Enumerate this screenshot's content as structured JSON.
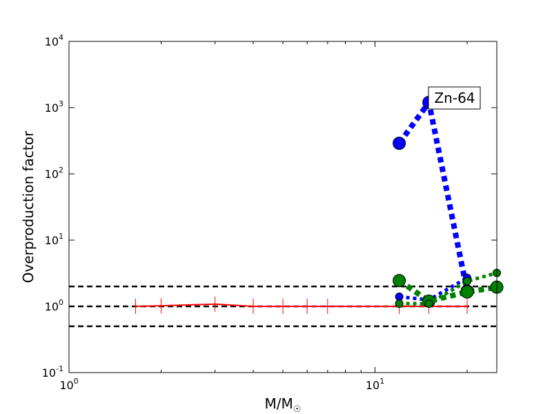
{
  "chart_data": {
    "type": "scatter",
    "title": "",
    "xlabel": "M/M",
    "xlabel_subscript": "☉",
    "ylabel": "Overproduction factor",
    "xscale": "log",
    "yscale": "log",
    "xlim": [
      1,
      25
    ],
    "ylim": [
      0.1,
      10000
    ],
    "grid": false,
    "annotation": "Zn-64",
    "x_ticks": [
      {
        "value": 1,
        "base": "10",
        "exp": "0"
      },
      {
        "value": 10,
        "base": "10",
        "exp": "1"
      }
    ],
    "y_ticks": [
      {
        "value": 0.1,
        "base": "10",
        "exp": "-1"
      },
      {
        "value": 1,
        "base": "10",
        "exp": "0"
      },
      {
        "value": 10,
        "base": "10",
        "exp": "1"
      },
      {
        "value": 100,
        "base": "10",
        "exp": "2"
      },
      {
        "value": 1000,
        "base": "10",
        "exp": "3"
      },
      {
        "value": 10000,
        "base": "10",
        "exp": "4"
      }
    ],
    "reference_lines": [
      {
        "y": 2,
        "color": "#000000",
        "style": "dashed"
      },
      {
        "y": 1,
        "color": "#000000",
        "style": "dashed"
      },
      {
        "y": 0.5,
        "color": "#000000",
        "style": "dashed"
      }
    ],
    "series": [
      {
        "color": "#ff0000",
        "style": "solid",
        "marker": "tick",
        "x": [
          1.65,
          2,
          3,
          4,
          5,
          6,
          7,
          12,
          15,
          20
        ],
        "y": [
          1.0,
          1.02,
          1.08,
          1.0,
          1.0,
          1.0,
          1.0,
          1.0,
          1.0,
          1.0
        ]
      },
      {
        "color": "#0000ff",
        "style": "dotted-thick",
        "marker": "circle-large",
        "x": [
          12,
          15,
          20
        ],
        "y": [
          290,
          1200,
          1.7
        ]
      },
      {
        "color": "#0000ff",
        "style": "dotted",
        "marker": "circle-small",
        "x": [
          12,
          15,
          20
        ],
        "y": [
          1.4,
          1.25,
          2.7
        ]
      },
      {
        "color": "#008000",
        "style": "dotted-thick",
        "marker": "circle-large",
        "x": [
          12,
          15,
          20,
          25
        ],
        "y": [
          2.45,
          1.2,
          1.65,
          1.95
        ]
      },
      {
        "color": "#008000",
        "style": "dotted",
        "marker": "circle-small",
        "x": [
          12,
          15,
          20,
          25
        ],
        "y": [
          1.1,
          1.1,
          2.4,
          3.2
        ]
      }
    ]
  }
}
